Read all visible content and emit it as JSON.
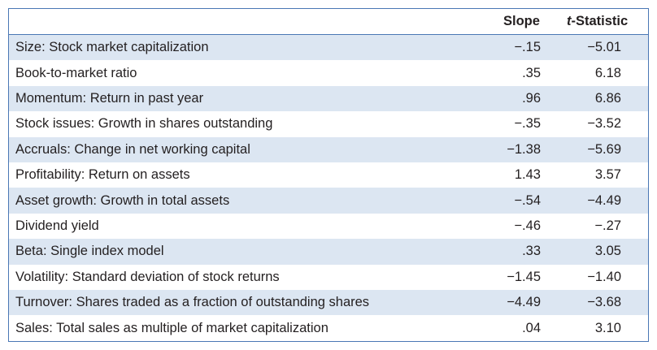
{
  "header": {
    "slope_label": "Slope",
    "tstat_prefix": "t",
    "tstat_suffix": "-Statistic"
  },
  "rows": [
    {
      "label": "Size: Stock market capitalization",
      "slope": "−.15",
      "tstat": "−5.01"
    },
    {
      "label": "Book-to-market ratio",
      "slope": ".35",
      "tstat": "6.18"
    },
    {
      "label": "Momentum: Return in past year",
      "slope": ".96",
      "tstat": "6.86"
    },
    {
      "label": "Stock issues: Growth in shares outstanding",
      "slope": "−.35",
      "tstat": "−3.52"
    },
    {
      "label": "Accruals: Change in net working capital",
      "slope": "−1.38",
      "tstat": "−5.69"
    },
    {
      "label": "Profitability: Return on assets",
      "slope": "1.43",
      "tstat": "3.57"
    },
    {
      "label": "Asset growth: Growth in total assets",
      "slope": "−.54",
      "tstat": "−4.49"
    },
    {
      "label": "Dividend yield",
      "slope": "−.46",
      "tstat": "−.27"
    },
    {
      "label": "Beta: Single index model",
      "slope": ".33",
      "tstat": "3.05"
    },
    {
      "label": "Volatility: Standard deviation of stock returns",
      "slope": "−1.45",
      "tstat": "−1.40"
    },
    {
      "label": "Turnover: Shares traded as a fraction of outstanding shares",
      "slope": "−4.49",
      "tstat": "−3.68"
    },
    {
      "label": "Sales: Total sales as multiple of market capitalization",
      "slope": ".04",
      "tstat": "3.10"
    }
  ],
  "colors": {
    "border": "#4a77b4",
    "shaded_row": "#dce6f2",
    "text": "#231f20"
  }
}
